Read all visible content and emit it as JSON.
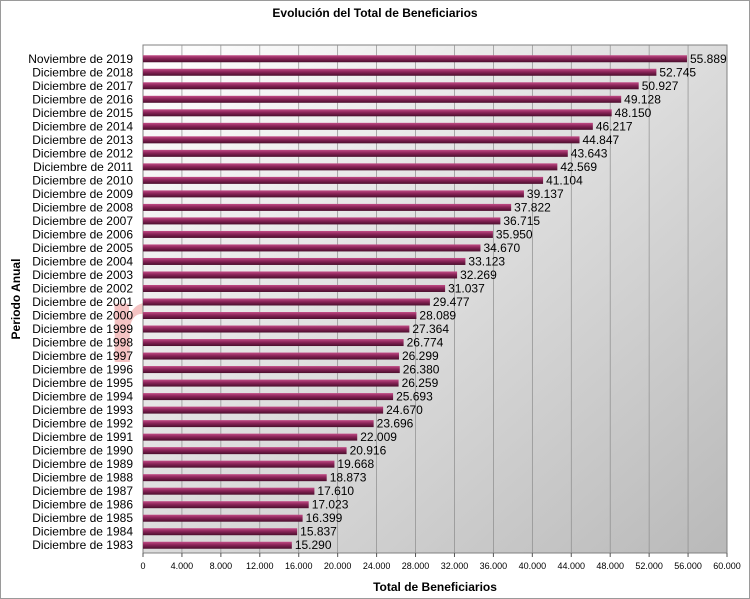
{
  "chart_data": {
    "type": "bar",
    "orientation": "horizontal",
    "title": "Evolución del Total de Beneficiarios",
    "xlabel": "Total de Beneficiarios",
    "ylabel": "Periodo Anual",
    "xlim": [
      0,
      60000
    ],
    "x_ticks": [
      "0",
      "4.000",
      "8.000",
      "12.000",
      "16.000",
      "20.000",
      "24.000",
      "28.000",
      "32.000",
      "36.000",
      "40.000",
      "44.000",
      "48.000",
      "52.000",
      "56.000",
      "60.000"
    ],
    "grid": true,
    "legend": "none",
    "bar_color": "#8a2458",
    "categories": [
      "Noviembre de 2019",
      "Diciembre de 2018",
      "Diciembre de 2017",
      "Diciembre de 2016",
      "Diciembre de 2015",
      "Diciembre de 2014",
      "Diciembre de 2013",
      "Diciembre de 2012",
      "Diciembre de 2011",
      "Diciembre de 2010",
      "Diciembre de 2009",
      "Diciembre de 2008",
      "Diciembre de 2007",
      "Diciembre de 2006",
      "Diciembre de 2005",
      "Diciembre de 2004",
      "Diciembre de 2003",
      "Diciembre de 2002",
      "Diciembre de 2001",
      "Diciembre de 2000",
      "Diciembre de 1999",
      "Diciembre de 1998",
      "Diciembre de 1997",
      "Diciembre de 1996",
      "Diciembre de 1995",
      "Diciembre de 1994",
      "Diciembre de 1993",
      "Diciembre de 1992",
      "Diciembre de 1991",
      "Diciembre de 1990",
      "Diciembre de 1989",
      "Diciembre de 1988",
      "Diciembre de 1987",
      "Diciembre de 1986",
      "Diciembre de 1985",
      "Diciembre de 1984",
      "Diciembre de 1983"
    ],
    "values": [
      55889,
      52745,
      50927,
      49128,
      48150,
      46217,
      44847,
      43643,
      42569,
      41104,
      39137,
      37822,
      36715,
      35950,
      34670,
      33123,
      32269,
      31037,
      29477,
      28089,
      27364,
      26774,
      26299,
      26380,
      26259,
      25693,
      24670,
      23696,
      22009,
      20916,
      19668,
      18873,
      17610,
      17023,
      16399,
      15837,
      15290
    ],
    "value_labels": [
      "55.889",
      "52.745",
      "50.927",
      "49.128",
      "48.150",
      "46.217",
      "44.847",
      "43.643",
      "42.569",
      "41.104",
      "39.137",
      "37.822",
      "36.715",
      "35.950",
      "34.670",
      "33.123",
      "32.269",
      "31.037",
      "29.477",
      "28.089",
      "27.364",
      "26.774",
      "26.299",
      "26.380",
      "26.259",
      "25.693",
      "24.670",
      "23.696",
      "22.009",
      "20.916",
      "19.668",
      "18.873",
      "17.610",
      "17.023",
      "16.399",
      "15.837",
      "15.290"
    ]
  },
  "watermark": "noticiauno"
}
